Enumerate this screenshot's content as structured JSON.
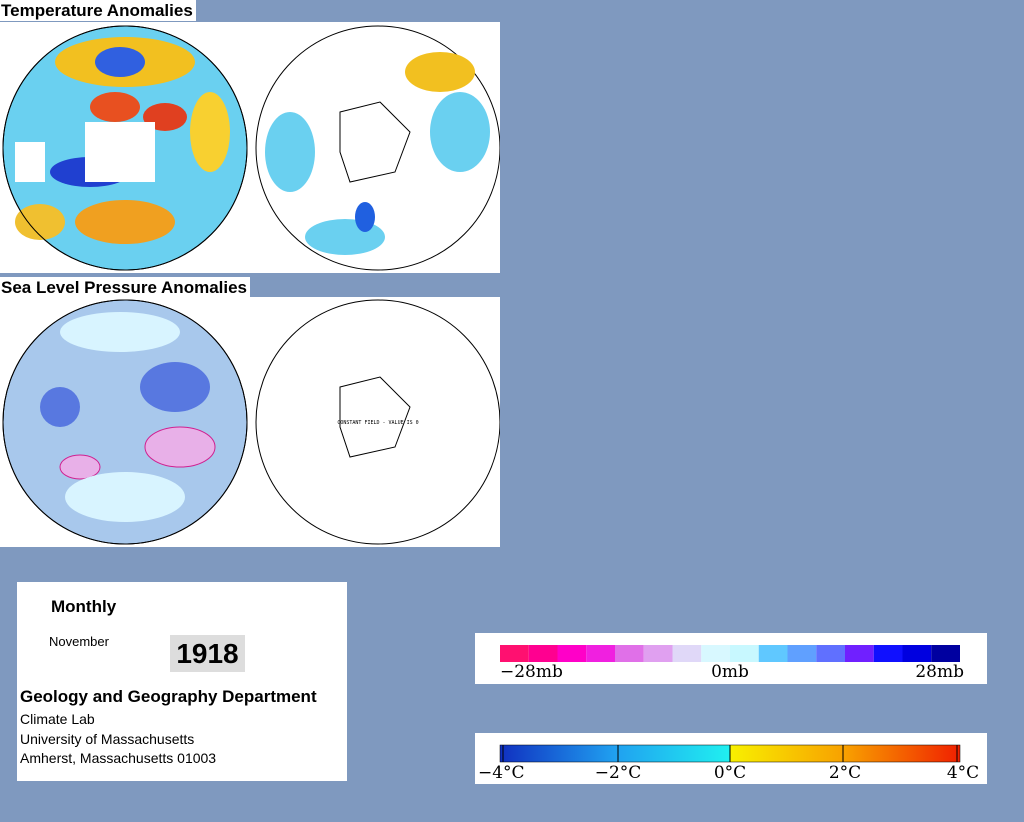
{
  "panels": [
    {
      "title": "Temperature Anomalies"
    },
    {
      "title": "Sea Level Pressure Anomalies",
      "note": "CONSTANT FIELD - VALUE IS 0"
    }
  ],
  "info": {
    "period": "Monthly",
    "month": "November",
    "year": "1918",
    "department": "Geology and Geography Department",
    "lines": [
      "Climate Lab",
      "University of Massachusetts",
      "Amherst, Massachusetts 01003"
    ]
  },
  "legends": [
    {
      "labels": [
        "−28mb",
        "0mb",
        "28mb"
      ]
    },
    {
      "labels": [
        "−4°C",
        "−2°C",
        "0°C",
        "2°C",
        "4°C"
      ]
    }
  ]
}
